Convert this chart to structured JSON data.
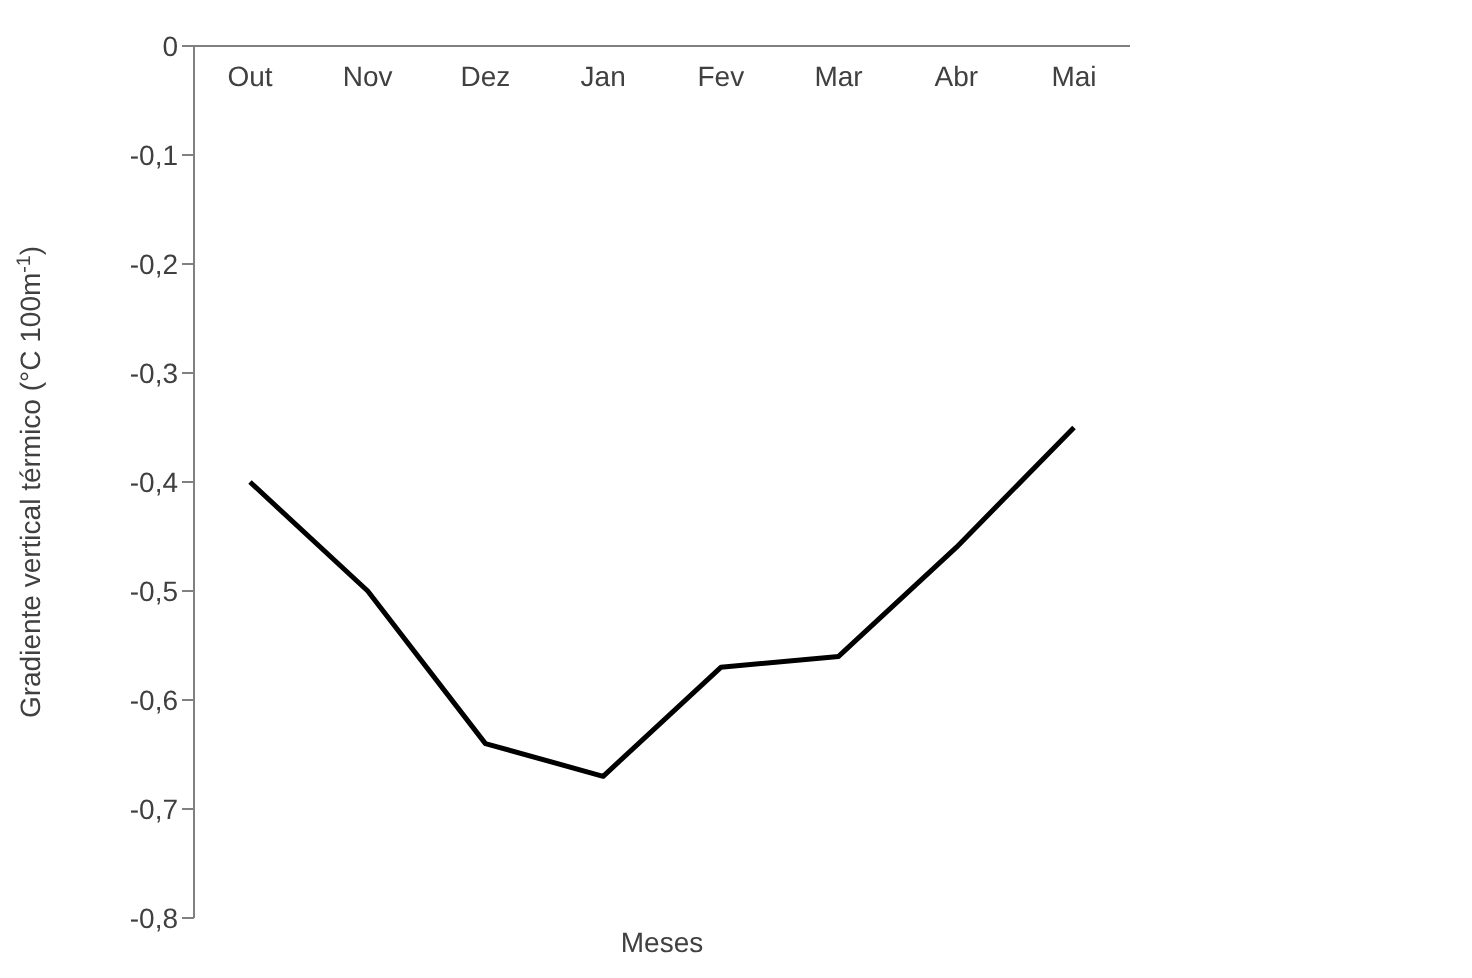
{
  "chart_data": {
    "type": "line",
    "xlabel": "Meses",
    "ylabel": "Gradiente vertical térmico  (°C 100m$^{-1}$)",
    "categories": [
      "Out",
      "Nov",
      "Dez",
      "Jan",
      "Fev",
      "Mar",
      "Abr",
      "Mai"
    ],
    "series": [
      {
        "color": "#000000",
        "values": [
          -0.4,
          -0.5,
          -0.64,
          -0.67,
          -0.57,
          -0.56,
          -0.46,
          -0.35
        ]
      }
    ],
    "ylim": [
      -0.8,
      0
    ],
    "yticks": [
      {
        "value": 0,
        "label": "0"
      },
      {
        "value": -0.1,
        "label": "-0,1"
      },
      {
        "value": -0.2,
        "label": "-0,2"
      },
      {
        "value": -0.3,
        "label": "-0,3"
      },
      {
        "value": -0.4,
        "label": "-0,4"
      },
      {
        "value": -0.5,
        "label": "-0,5"
      },
      {
        "value": -0.6,
        "label": "-0,6"
      },
      {
        "value": -0.7,
        "label": "-0,7"
      },
      {
        "value": -0.8,
        "label": "-0,8"
      }
    ],
    "grid": false,
    "legend": false,
    "marker": "none",
    "line_style": "solid"
  }
}
